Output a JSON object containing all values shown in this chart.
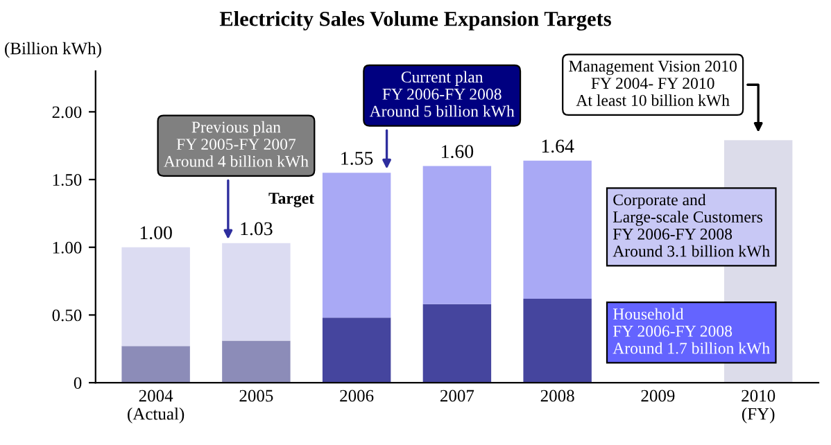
{
  "chart_data": {
    "type": "bar",
    "title": "Electricity Sales Volume Expansion Targets",
    "ylabel": "(Billion kWh)",
    "categories": [
      "2004\n(Actual)",
      "2005",
      "2006",
      "2007",
      "2008",
      "2009",
      "2010\n(FY)"
    ],
    "stacked": true,
    "series": [
      {
        "colors": [
          "#8c8cb8",
          "#8c8cb8",
          "#45459e",
          "#45459e",
          "#45459e",
          "#45459e",
          "#dcdcea"
        ],
        "values": [
          0.27,
          0.31,
          0.48,
          0.58,
          0.62,
          null,
          null
        ]
      },
      {
        "colors": [
          "#dcdcf2",
          "#dcdcf2",
          "#a9a9f5",
          "#a9a9f5",
          "#a9a9f5",
          "#a9a9f5",
          "#dcdcea"
        ],
        "values": [
          0.73,
          0.72,
          1.07,
          1.02,
          1.02,
          null,
          1.79
        ]
      }
    ],
    "totals": [
      "1.00",
      "1.03",
      "1.55",
      "1.60",
      "1.64",
      null,
      null
    ],
    "ylim": [
      0,
      2.3
    ],
    "yticks": [
      0,
      {
        "value": 0.5,
        "label": "0.50"
      },
      {
        "value": 1.0,
        "label": "1.00"
      },
      {
        "value": 1.5,
        "label": "1.50"
      },
      {
        "value": 2.0,
        "label": "2.00"
      }
    ],
    "grid": false,
    "legend": false,
    "annotations": [
      "Target",
      "Previous plan\nFY 2005-FY 2007\nAround 4 billion kWh",
      "Current plan\nFY 2006-FY 2008\nAround 5 billion kWh",
      "Management Vision 2010\nFY 2004- FY 2010\nAt least 10 billion kWh",
      "Corporate and\nLarge-scale Customers\nFY 2006-FY 2008\nAround 3.1 billion kWh",
      "Household\nFY 2006-FY 2008\nAround 1.7 billion kWh"
    ]
  }
}
